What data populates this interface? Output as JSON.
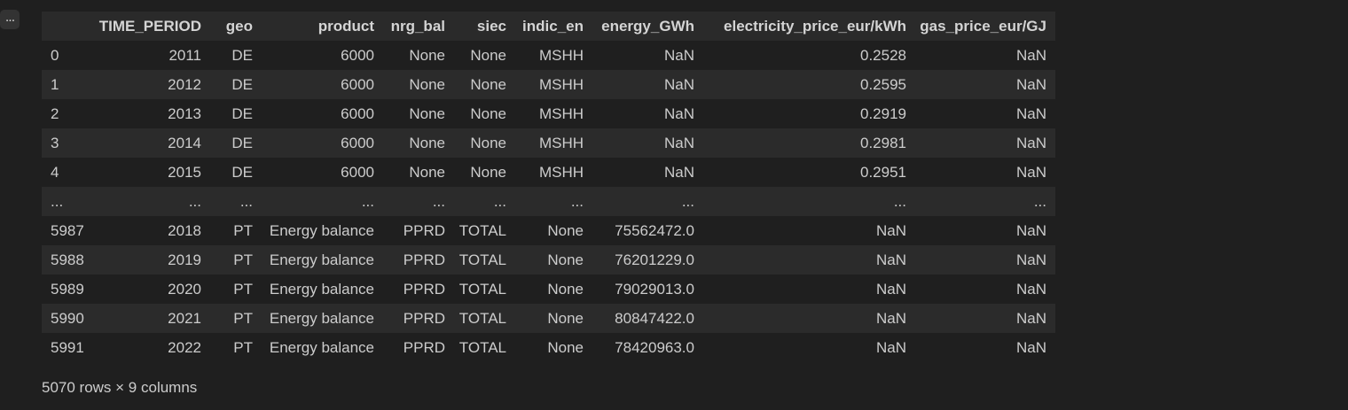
{
  "toolbar": {
    "more_label": "..."
  },
  "dataframe": {
    "columns": [
      "",
      "TIME_PERIOD",
      "geo",
      "product",
      "nrg_bal",
      "siec",
      "indic_en",
      "energy_GWh",
      "electricity_price_eur/kWh",
      "gas_price_eur/GJ"
    ],
    "rows": [
      {
        "index": "0",
        "cells": [
          "2011",
          "DE",
          "6000",
          "None",
          "None",
          "MSHH",
          "NaN",
          "0.2528",
          "NaN"
        ]
      },
      {
        "index": "1",
        "cells": [
          "2012",
          "DE",
          "6000",
          "None",
          "None",
          "MSHH",
          "NaN",
          "0.2595",
          "NaN"
        ]
      },
      {
        "index": "2",
        "cells": [
          "2013",
          "DE",
          "6000",
          "None",
          "None",
          "MSHH",
          "NaN",
          "0.2919",
          "NaN"
        ]
      },
      {
        "index": "3",
        "cells": [
          "2014",
          "DE",
          "6000",
          "None",
          "None",
          "MSHH",
          "NaN",
          "0.2981",
          "NaN"
        ]
      },
      {
        "index": "4",
        "cells": [
          "2015",
          "DE",
          "6000",
          "None",
          "None",
          "MSHH",
          "NaN",
          "0.2951",
          "NaN"
        ]
      },
      {
        "index": "...",
        "cells": [
          "...",
          "...",
          "...",
          "...",
          "...",
          "...",
          "...",
          "...",
          "..."
        ]
      },
      {
        "index": "5987",
        "cells": [
          "2018",
          "PT",
          "Energy balance",
          "PPRD",
          "TOTAL",
          "None",
          "75562472.0",
          "NaN",
          "NaN"
        ]
      },
      {
        "index": "5988",
        "cells": [
          "2019",
          "PT",
          "Energy balance",
          "PPRD",
          "TOTAL",
          "None",
          "76201229.0",
          "NaN",
          "NaN"
        ]
      },
      {
        "index": "5989",
        "cells": [
          "2020",
          "PT",
          "Energy balance",
          "PPRD",
          "TOTAL",
          "None",
          "79029013.0",
          "NaN",
          "NaN"
        ]
      },
      {
        "index": "5990",
        "cells": [
          "2021",
          "PT",
          "Energy balance",
          "PPRD",
          "TOTAL",
          "None",
          "80847422.0",
          "NaN",
          "NaN"
        ]
      },
      {
        "index": "5991",
        "cells": [
          "2022",
          "PT",
          "Energy balance",
          "PPRD",
          "TOTAL",
          "None",
          "78420963.0",
          "NaN",
          "NaN"
        ]
      }
    ],
    "shape_text": "5070 rows × 9 columns"
  }
}
